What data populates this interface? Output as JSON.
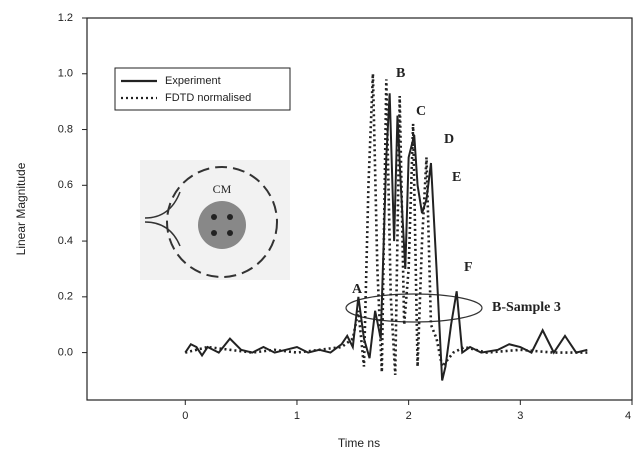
{
  "chart_data": {
    "type": "line",
    "xlabel": "Time ns",
    "ylabel": "Linear Magnitude",
    "xlim": [
      -0.88,
      4
    ],
    "ylim": [
      -0.17,
      1.2
    ],
    "xticks": [
      0,
      1,
      2,
      3,
      4
    ],
    "yticks": [
      {
        "value": 0,
        "label": "0.0"
      },
      0.2,
      0.4,
      0.6,
      0.8,
      {
        "value": 1,
        "label": "1.0"
      },
      1.2
    ],
    "legend": "upper left",
    "series": [
      {
        "name": "Experiment",
        "color": "#222222",
        "style": "solid",
        "x": [
          0,
          0.05,
          0.1,
          0.15,
          0.2,
          0.3,
          0.4,
          0.5,
          0.6,
          0.7,
          0.8,
          0.9,
          1.0,
          1.1,
          1.2,
          1.3,
          1.4,
          1.45,
          1.5,
          1.55,
          1.6,
          1.65,
          1.7,
          1.75,
          1.8,
          1.83,
          1.87,
          1.9,
          1.93,
          1.97,
          2.0,
          2.05,
          2.08,
          2.12,
          2.16,
          2.2,
          2.25,
          2.3,
          2.33,
          2.38,
          2.43,
          2.48,
          2.55,
          2.65,
          2.8,
          2.9,
          3.0,
          3.1,
          3.2,
          3.3,
          3.4,
          3.5,
          3.6
        ],
        "values": [
          0,
          0.03,
          0.02,
          -0.01,
          0.02,
          0.0,
          0.05,
          0.01,
          0.0,
          0.02,
          0.0,
          0.01,
          0.02,
          0.0,
          0.01,
          0.0,
          0.03,
          0.06,
          0.02,
          0.2,
          0.05,
          -0.02,
          0.15,
          0.05,
          0.7,
          0.93,
          0.4,
          0.85,
          0.6,
          0.3,
          0.7,
          0.78,
          0.6,
          0.5,
          0.55,
          0.68,
          0.3,
          -0.1,
          -0.05,
          0.1,
          0.22,
          0.0,
          0.02,
          0.0,
          0.01,
          0.03,
          0.02,
          0.0,
          0.08,
          0.0,
          0.06,
          0.0,
          0.01
        ]
      },
      {
        "name": "FDTD normalised",
        "color": "#222222",
        "style": "dotted",
        "x": [
          0,
          0.2,
          0.4,
          0.6,
          0.8,
          1.0,
          1.2,
          1.4,
          1.5,
          1.55,
          1.6,
          1.64,
          1.68,
          1.72,
          1.76,
          1.8,
          1.84,
          1.88,
          1.92,
          1.96,
          2.0,
          2.04,
          2.08,
          2.12,
          2.16,
          2.2,
          2.25,
          2.3,
          2.4,
          2.5,
          2.7,
          3.0,
          3.3,
          3.6
        ],
        "values": [
          0,
          0.02,
          0.01,
          0.0,
          0.01,
          0.0,
          0.01,
          0.02,
          0.05,
          0.15,
          -0.05,
          0.6,
          1.0,
          0.3,
          -0.07,
          0.98,
          0.2,
          -0.08,
          0.92,
          0.1,
          0.3,
          0.82,
          -0.05,
          0.4,
          0.7,
          0.1,
          0.05,
          -0.05,
          0.0,
          0.02,
          0.0,
          0.01,
          0.0,
          0.0
        ]
      }
    ],
    "annotations": [
      "A",
      "B",
      "C",
      "D",
      "E",
      "F",
      "B-Sample 3"
    ],
    "inset_label": "CM"
  }
}
